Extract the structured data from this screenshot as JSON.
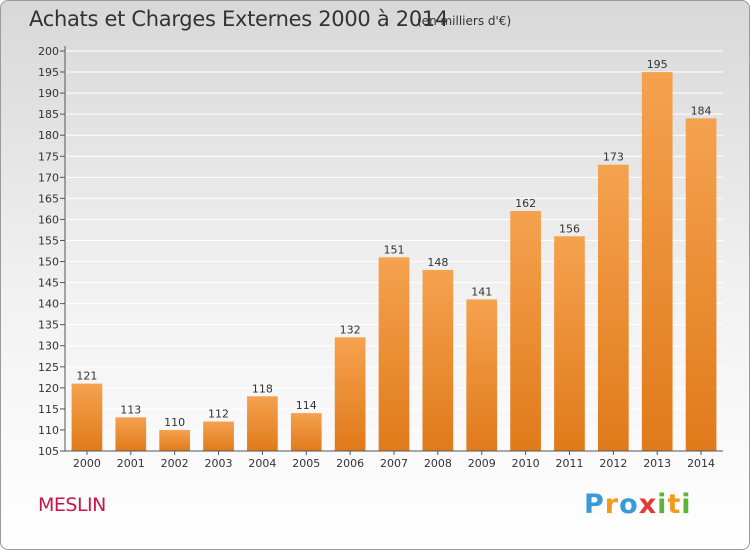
{
  "title": "Achats et Charges Externes 2000 à 2014",
  "subtitle": "(en milliers d'€)",
  "town": "MESLIN",
  "brand": "Proxiti",
  "colors": {
    "bar_top": "#f5a24f",
    "bar_bottom": "#e07a1a",
    "axis": "#555555",
    "grid": "#ffffff",
    "town": "#c8154a"
  },
  "chart_data": {
    "type": "bar",
    "categories": [
      "2000",
      "2001",
      "2002",
      "2003",
      "2004",
      "2005",
      "2006",
      "2007",
      "2008",
      "2009",
      "2010",
      "2011",
      "2012",
      "2013",
      "2014"
    ],
    "values": [
      121,
      113,
      110,
      112,
      118,
      114,
      132,
      151,
      148,
      141,
      162,
      156,
      173,
      195,
      184
    ],
    "ylim": [
      105,
      200
    ],
    "yticks": [
      105,
      110,
      115,
      120,
      125,
      130,
      135,
      140,
      145,
      150,
      155,
      160,
      165,
      170,
      175,
      180,
      185,
      190,
      195,
      200
    ],
    "grid": true,
    "data_labels": true
  }
}
